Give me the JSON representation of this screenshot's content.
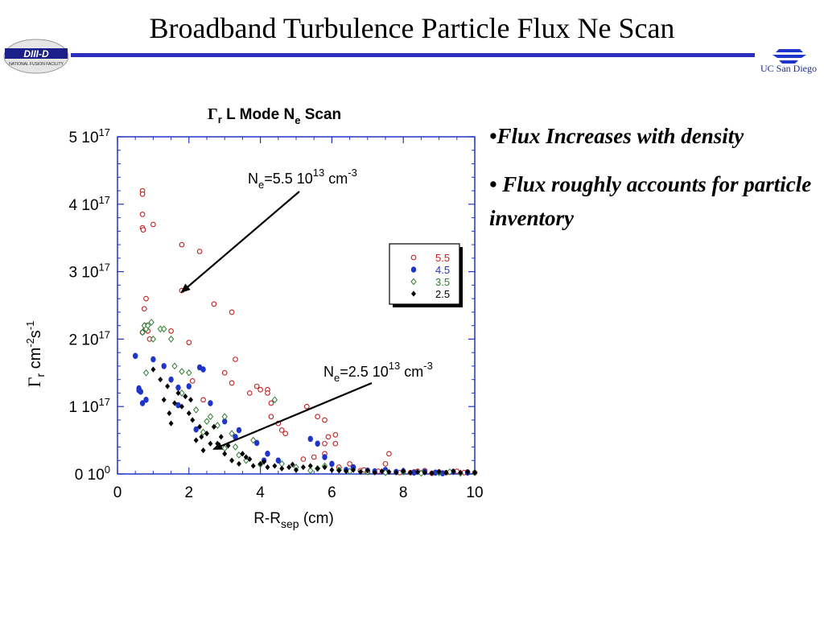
{
  "slide": {
    "title": "Broadband Turbulence Particle Flux Ne Scan",
    "rule_color": "#2b2fbd",
    "left_logo_text": "DIII-D",
    "left_logo_subtext": "NATIONAL FUSION FACILITY",
    "right_logo_text": "UC San Diego"
  },
  "bullets": [
    "•Flux Increases with density",
    "• Flux roughly accounts for particle inventory"
  ],
  "chart_data": {
    "type": "scatter",
    "title": {
      "main": "Γ",
      "sub": "r",
      "rest": " L Mode N",
      "sub2": "e",
      "tail": " Scan"
    },
    "xlabel": {
      "main": "R-R",
      "sub": "sep",
      "tail": " (cm)"
    },
    "ylabel": {
      "main": "Γ",
      "sub": "r",
      "tail": " cm",
      "exp1": "-2",
      "mid": "s",
      "exp2": "-1"
    },
    "xlim": [
      0,
      10
    ],
    "ylim": [
      0,
      5e+17
    ],
    "x_ticks": [
      0,
      2,
      4,
      6,
      8,
      10
    ],
    "x_tick_labels": [
      "0",
      "2",
      "4",
      "6",
      "8",
      "10"
    ],
    "y_ticks": [
      0,
      1e+17,
      2e+17,
      3e+17,
      4e+17,
      5e+17
    ],
    "y_tick_labels": [
      {
        "base": "0 10",
        "exp": "0"
      },
      {
        "base": "1 10",
        "exp": "17"
      },
      {
        "base": "2 10",
        "exp": "17"
      },
      {
        "base": "3 10",
        "exp": "17"
      },
      {
        "base": "4 10",
        "exp": "17"
      },
      {
        "base": "5 10",
        "exp": "17"
      }
    ],
    "legend_position": "top-right",
    "annotations": [
      {
        "text": "N",
        "sub": "e",
        "rest": "=5.5 10",
        "exp": "13",
        "unit": " cm",
        "unit_exp": "-3",
        "arrow_to": [
          1.8,
          2.7e+17
        ]
      },
      {
        "text": "N",
        "sub": "e",
        "rest": "=2.5 10",
        "exp": "13",
        "unit": " cm",
        "unit_exp": "-3",
        "arrow_to": [
          2.7,
          3.7e+16
        ]
      }
    ],
    "series": [
      {
        "name": "5.5",
        "marker": "open-circle",
        "color": "#c0221f",
        "x": [
          0.7,
          0.7,
          0.7,
          0.7,
          0.72,
          1.0,
          0.8,
          0.75,
          0.8,
          0.78,
          0.85,
          0.7,
          0.9,
          1.8,
          2.3,
          1.8,
          1.5,
          2.0,
          2.7,
          3.2,
          3.3,
          3.0,
          3.2,
          2.1,
          2.4,
          3.7,
          3.9,
          4.0,
          4.2,
          4.3,
          4.3,
          4.2,
          4.5,
          4.6,
          4.7,
          5.3,
          5.6,
          5.8,
          5.8,
          6.1,
          6.1,
          5.8,
          5.2,
          5.5,
          5.9,
          6.5,
          6.2,
          6.8,
          7.0,
          7.5,
          7.6,
          8.2,
          8.4,
          8.6,
          9.0,
          9.2,
          7.3,
          7.9,
          8.3,
          8.8,
          9.5,
          9.7,
          9.8,
          10.0,
          6.6,
          6.9
        ],
        "y": [
          4.2e+17,
          4.15e+17,
          3.85e+17,
          3.65e+17,
          3.62e+17,
          3.7e+17,
          2.6e+17,
          2.45e+17,
          2.2e+17,
          2.15e+17,
          2.12e+17,
          2.1e+17,
          2e+17,
          3.4e+17,
          3.3e+17,
          2.72e+17,
          2.12e+17,
          1.95e+17,
          2.52e+17,
          2.4e+17,
          1.7e+17,
          1.5e+17,
          1.35e+17,
          1.38e+17,
          1.1e+17,
          1.2e+17,
          1.3e+17,
          1.25e+17,
          1.25e+17,
          1.05e+17,
          8.5e+16,
          1.2e+17,
          7.5e+16,
          6.5e+16,
          6e+16,
          1e+17,
          8.5e+16,
          8e+16,
          4.5e+16,
          4.5e+16,
          5.8e+16,
          3e+16,
          2.2e+16,
          2.5e+16,
          5.5e+16,
          1.5e+16,
          1e+16,
          5000000000000000.0,
          3000000000000000.0,
          1.5e+16,
          3e+16,
          2000000000000000.0,
          4000000000000000.0,
          5000000000000000.0,
          3000000000000000.0,
          2000000000000000.0,
          4000000000000000.0,
          2000000000000000.0,
          3000000000000000.0,
          1000000000000000.0,
          4000000000000000.0,
          2000000000000000.0,
          3000000000000000.0,
          2000000000000000.0,
          1e+16,
          6000000000000000.0
        ]
      },
      {
        "name": "4.5",
        "marker": "filled-circle",
        "color": "#1f35c9",
        "x": [
          0.5,
          0.6,
          0.6,
          0.65,
          0.7,
          0.8,
          1.0,
          1.3,
          1.5,
          1.7,
          1.7,
          2.0,
          2.3,
          2.4,
          2.6,
          2.2,
          3.0,
          3.4,
          3.3,
          3.9,
          4.1,
          4.2,
          4.5,
          5.4,
          5.6,
          5.8,
          6.0,
          6.4,
          6.6,
          7.0,
          7.2,
          7.5,
          7.8,
          8.0,
          8.3,
          8.6,
          8.9,
          9.1,
          9.4,
          9.8
        ],
        "y": [
          1.75e+17,
          1.27e+17,
          1.24e+17,
          1.22e+17,
          1.05e+17,
          1.1e+17,
          1.7e+17,
          1.6e+17,
          1.4e+17,
          1.02e+17,
          1.28e+17,
          1.3e+17,
          1.58e+17,
          1.55e+17,
          1.05e+17,
          6.6e+16,
          7.8e+16,
          6.5e+16,
          5.5e+16,
          4.6e+16,
          2e+16,
          3e+16,
          2e+16,
          5.2e+16,
          4.5e+16,
          2.5e+16,
          1.5e+16,
          6000000000000000.0,
          1e+16,
          5000000000000000.0,
          4000000000000000.0,
          6000000000000000.0,
          3000000000000000.0,
          4000000000000000.0,
          2000000000000000.0,
          3000000000000000.0,
          2000000000000000.0,
          1000000000000000.0,
          3000000000000000.0,
          2000000000000000.0
        ]
      },
      {
        "name": "3.5",
        "marker": "open-diamond",
        "color": "#2e7d32",
        "x": [
          0.7,
          0.75,
          0.8,
          0.85,
          0.95,
          1.0,
          1.2,
          1.3,
          1.5,
          0.8,
          1.6,
          1.8,
          1.8,
          2.0,
          2.2,
          2.4,
          2.6,
          2.8,
          3.0,
          3.2,
          3.4,
          3.6,
          3.8,
          4.0,
          4.4,
          4.6,
          5.0,
          5.4,
          5.6,
          5.8,
          6.2,
          6.5,
          7.0,
          7.5,
          8.0,
          8.5,
          9.0,
          9.3,
          9.6,
          10.0,
          3.0,
          2.5,
          3.3
        ],
        "y": [
          2.1e+17,
          2.2e+17,
          2.15e+17,
          2.2e+17,
          2.25e+17,
          2e+17,
          2.15e+17,
          2.15e+17,
          2e+17,
          1.5e+17,
          1.6e+17,
          1.52e+17,
          1.2e+17,
          1.5e+17,
          9.5e+16,
          6.2e+16,
          8.5e+16,
          7.2e+16,
          3.8e+16,
          6e+16,
          2.8e+16,
          2e+16,
          5e+16,
          1.4e+16,
          1.1e+17,
          1.5e+16,
          1e+16,
          5000000000000000.0,
          8000000000000000.0,
          1.2e+16,
          6000000000000000.0,
          4000000000000000.0,
          3000000000000000.0,
          2000000000000000.0,
          3000000000000000.0,
          1000000000000000.0,
          2000000000000000.0,
          3000000000000000.0,
          1000000000000000.0,
          2000000000000000.0,
          8.5e+16,
          7.8e+16,
          4e+16
        ]
      },
      {
        "name": "2.5",
        "marker": "filled-diamond",
        "color": "#000000",
        "x": [
          1.0,
          1.2,
          1.3,
          1.4,
          1.5,
          1.6,
          1.8,
          1.9,
          2.0,
          2.1,
          2.2,
          2.3,
          2.4,
          2.5,
          2.6,
          2.7,
          2.8,
          2.9,
          3.0,
          3.2,
          3.4,
          3.5,
          3.7,
          3.8,
          4.0,
          4.2,
          4.4,
          4.6,
          4.8,
          5.0,
          5.2,
          5.4,
          5.6,
          5.8,
          6.0,
          6.2,
          6.4,
          6.6,
          6.8,
          7.0,
          7.2,
          7.4,
          7.6,
          7.8,
          8.0,
          8.2,
          8.4,
          8.6,
          8.8,
          9.0,
          9.2,
          9.4,
          9.6,
          9.8,
          10.0,
          1.45,
          1.7,
          2.05,
          2.35,
          3.1,
          3.6,
          4.1,
          4.9
        ],
        "y": [
          1.55e+17,
          1.4e+17,
          1.1e+17,
          1.3e+17,
          7.5e+16,
          1.05e+17,
          1e+17,
          1.15e+17,
          9e+16,
          8e+16,
          5e+16,
          7e+16,
          3.5e+16,
          6e+16,
          4.5e+16,
          7e+16,
          4.5e+16,
          5.5e+16,
          3e+16,
          2e+16,
          1.5e+16,
          3e+16,
          2.2e+16,
          1.2e+16,
          1.5e+16,
          1e+16,
          1.2e+16,
          8000000000000000.0,
          1e+16,
          6000000000000000.0,
          1e+16,
          1.2e+16,
          8000000000000000.0,
          1e+16,
          6000000000000000.0,
          5000000000000000.0,
          4000000000000000.0,
          6000000000000000.0,
          3000000000000000.0,
          5000000000000000.0,
          2000000000000000.0,
          4000000000000000.0,
          3000000000000000.0,
          2000000000000000.0,
          4000000000000000.0,
          2000000000000000.0,
          3000000000000000.0,
          2000000000000000.0,
          1000000000000000.0,
          3000000000000000.0,
          2000000000000000.0,
          4000000000000000.0,
          2000000000000000.0,
          3000000000000000.0,
          2000000000000000.0,
          9e+16,
          1.2e+17,
          1.1e+17,
          5.5e+16,
          4.2e+16,
          2.5e+16,
          1.8e+16,
          1.4e+16
        ]
      }
    ]
  }
}
